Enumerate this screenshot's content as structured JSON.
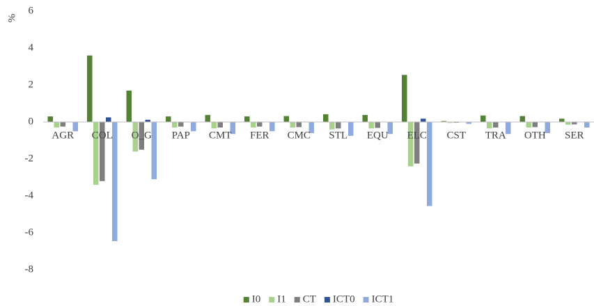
{
  "chart_data": {
    "type": "bar",
    "y_label": "%",
    "categories": [
      "AGR",
      "COL",
      "O_G",
      "PAP",
      "CMT",
      "FER",
      "CMC",
      "STL",
      "EQU",
      "ELC",
      "CST",
      "TRA",
      "OTH",
      "SER"
    ],
    "series": [
      {
        "name": "I0",
        "color": "#548235",
        "values": [
          0.3,
          3.6,
          1.7,
          0.3,
          0.38,
          0.3,
          0.32,
          0.42,
          0.38,
          2.55,
          0.05,
          0.35,
          0.32,
          0.18
        ]
      },
      {
        "name": "I1",
        "color": "#a9d18e",
        "values": [
          -0.3,
          -3.4,
          -1.6,
          -0.3,
          -0.35,
          -0.3,
          -0.3,
          -0.4,
          -0.35,
          -2.4,
          -0.05,
          -0.35,
          -0.3,
          -0.15
        ]
      },
      {
        "name": "CT",
        "color": "#7f7f7f",
        "values": [
          -0.25,
          -3.2,
          -1.5,
          -0.25,
          -0.3,
          -0.25,
          -0.28,
          -0.35,
          -0.32,
          -2.25,
          -0.04,
          -0.3,
          -0.28,
          -0.13
        ]
      },
      {
        "name": "ICT0",
        "color": "#2f5597",
        "values": [
          0.02,
          0.25,
          0.12,
          0.02,
          0.02,
          0.02,
          0.02,
          0.02,
          0.02,
          0.18,
          0.01,
          0.02,
          0.02,
          0.01
        ]
      },
      {
        "name": "ICT1",
        "color": "#8faadc",
        "values": [
          -0.5,
          -6.45,
          -3.1,
          -0.5,
          -0.65,
          -0.5,
          -0.6,
          -0.75,
          -0.65,
          -4.55,
          -0.1,
          -0.65,
          -0.6,
          -0.3
        ]
      }
    ],
    "ylim": [
      -8,
      6
    ],
    "yticks": [
      -8,
      -6,
      -4,
      -2,
      0,
      2,
      4,
      6
    ],
    "grid": false,
    "legend": "bottom"
  }
}
